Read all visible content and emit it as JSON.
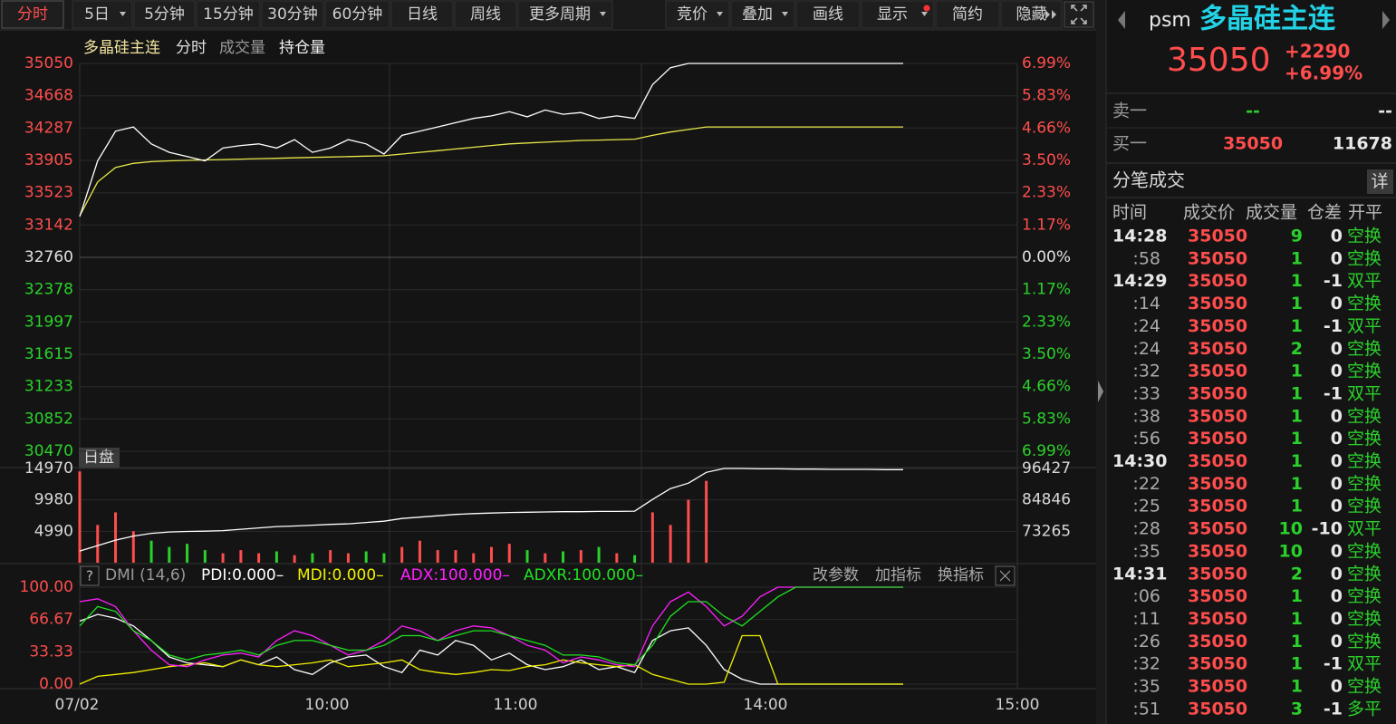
{
  "toolbar_left": [
    {
      "label": "分时",
      "active": true
    },
    {
      "label": "5日",
      "dropdown": true
    },
    {
      "label": "5分钟"
    },
    {
      "label": "15分钟"
    },
    {
      "label": "30分钟"
    },
    {
      "label": "60分钟"
    },
    {
      "label": "日线"
    },
    {
      "label": "周线"
    },
    {
      "label": "更多周期",
      "dropdown": true
    }
  ],
  "toolbar_right": [
    {
      "label": "竞价",
      "dropdown": true
    },
    {
      "label": "叠加",
      "dropdown": true
    },
    {
      "label": "画线"
    },
    {
      "label": "显示",
      "dropdown": true,
      "badge": true
    },
    {
      "label": "简约"
    },
    {
      "label": "隐藏"
    }
  ],
  "legend": [
    "多晶硅主连",
    "分时",
    "成交量",
    "持仓量"
  ],
  "price_chart": {
    "type": "line",
    "ylim": [
      30470,
      35050
    ],
    "yticks": [
      35050,
      34668,
      34287,
      33905,
      33523,
      33142,
      32760,
      32378,
      31997,
      31615,
      31233,
      30852,
      30470
    ],
    "pct_labels": [
      "6.99%",
      "5.83%",
      "4.66%",
      "3.50%",
      "2.33%",
      "1.17%",
      "0.00%",
      "1.17%",
      "2.33%",
      "3.50%",
      "4.66%",
      "5.83%",
      "6.99%"
    ],
    "up_color": "#ff4d4d",
    "down_color": "#2bd12b",
    "flat_color": "#e0e0e0",
    "session_label": "日盘",
    "price": {
      "color": "#ffffff",
      "values": [
        33240,
        33900,
        34250,
        34300,
        34100,
        34000,
        33950,
        33900,
        34050,
        34080,
        34100,
        34050,
        34150,
        34000,
        34050,
        34150,
        34100,
        33980,
        34200,
        34250,
        34300,
        34350,
        34400,
        34430,
        34480,
        34420,
        34500,
        34450,
        34470,
        34400,
        34430,
        34400,
        34800,
        35000,
        35050,
        35050,
        35050,
        35050,
        35050,
        35050,
        35050,
        35050,
        35050,
        35050,
        35050,
        35050,
        35050
      ]
    },
    "average": {
      "color": "#e8e84a",
      "values": [
        33250,
        33650,
        33820,
        33870,
        33890,
        33900,
        33905,
        33910,
        33915,
        33920,
        33925,
        33930,
        33935,
        33940,
        33945,
        33950,
        33955,
        33960,
        33980,
        34000,
        34020,
        34040,
        34060,
        34080,
        34100,
        34110,
        34120,
        34130,
        34140,
        34145,
        34150,
        34155,
        34200,
        34240,
        34270,
        34300,
        34300,
        34300,
        34300,
        34300,
        34300,
        34300,
        34300,
        34300,
        34300,
        34300,
        34300
      ]
    }
  },
  "volume_chart": {
    "type": "bar",
    "ylim": [
      0,
      14970
    ],
    "yticks": [
      4990,
      9980,
      14970
    ],
    "y2lim": [
      61684,
      96427
    ],
    "y2ticks": [
      73265,
      84846,
      96427
    ],
    "volume": {
      "values": [
        14500,
        6000,
        8000,
        5000,
        3500,
        2500,
        3000,
        2000,
        1500,
        2000,
        1500,
        1800,
        1200,
        1500,
        2000,
        1500,
        1800,
        1500,
        2500,
        3500,
        2000,
        2000,
        1500,
        2500,
        3000,
        2000,
        1500,
        1800,
        2000,
        2500,
        1500,
        1200,
        8000,
        6000,
        10000,
        13000,
        0,
        0,
        0,
        0,
        0,
        0,
        0,
        0,
        0,
        0,
        0
      ]
    },
    "open_interest": {
      "color": "#ffffff",
      "axis": "y2",
      "values": [
        66000,
        68000,
        70000,
        71500,
        72500,
        73000,
        73200,
        73300,
        73500,
        74000,
        74500,
        75000,
        75200,
        75500,
        75800,
        76000,
        76500,
        77000,
        78000,
        78500,
        79000,
        79500,
        79800,
        80000,
        80200,
        80300,
        80400,
        80500,
        80500,
        80600,
        80600,
        80700,
        85000,
        89000,
        91000,
        95000,
        96427,
        96427,
        96300,
        96300,
        96200,
        96200,
        96100,
        96100,
        96100,
        96000,
        96000
      ]
    }
  },
  "dmi": {
    "type": "line",
    "help": "?",
    "title": "DMI (14,6)",
    "ylim": [
      0,
      100
    ],
    "yticks": [
      {
        "value": 0,
        "label": "0.00"
      },
      {
        "value": 33.33,
        "label": "33.33"
      },
      {
        "value": 66.67,
        "label": "66.67"
      },
      {
        "value": 100,
        "label": "100.00"
      }
    ],
    "series": [
      {
        "name": "PDI:0.000–",
        "color": "#ffffff",
        "values": [
          65,
          72,
          68,
          60,
          45,
          28,
          22,
          20,
          18,
          25,
          20,
          28,
          15,
          10,
          22,
          28,
          30,
          18,
          12,
          35,
          30,
          45,
          40,
          25,
          32,
          20,
          15,
          18,
          25,
          15,
          18,
          12,
          45,
          55,
          58,
          40,
          15,
          5,
          0,
          0,
          0,
          0,
          0,
          0,
          0,
          0,
          0
        ]
      },
      {
        "name": "MDI:0.000–",
        "color": "#f0f000",
        "values": [
          0,
          8,
          10,
          12,
          15,
          18,
          20,
          22,
          18,
          25,
          20,
          18,
          20,
          22,
          25,
          18,
          20,
          22,
          25,
          15,
          12,
          10,
          12,
          15,
          14,
          18,
          20,
          25,
          22,
          20,
          18,
          20,
          10,
          5,
          0,
          0,
          2,
          50,
          50,
          0,
          0,
          0,
          0,
          0,
          0,
          0,
          0
        ]
      },
      {
        "name": "ADX:100.000–",
        "color": "#ff20ff",
        "values": [
          85,
          88,
          80,
          55,
          35,
          20,
          18,
          25,
          30,
          32,
          28,
          45,
          55,
          50,
          40,
          30,
          35,
          45,
          60,
          55,
          45,
          55,
          60,
          58,
          50,
          40,
          35,
          22,
          28,
          25,
          20,
          18,
          60,
          85,
          95,
          80,
          60,
          70,
          90,
          100,
          100,
          100,
          100,
          100,
          100,
          100,
          100
        ]
      },
      {
        "name": "ADXR:100.000–",
        "color": "#20e020",
        "values": [
          60,
          80,
          75,
          55,
          45,
          30,
          25,
          30,
          32,
          35,
          30,
          40,
          45,
          45,
          40,
          35,
          35,
          40,
          50,
          50,
          45,
          50,
          55,
          55,
          50,
          45,
          40,
          30,
          30,
          28,
          22,
          20,
          40,
          70,
          85,
          85,
          70,
          60,
          75,
          90,
          100,
          100,
          100,
          100,
          100,
          100,
          100
        ]
      }
    ],
    "actions": [
      "改参数",
      "加指标",
      "换指标"
    ]
  },
  "time_axis": [
    "07/02",
    "10:00",
    "11:00",
    "14:00",
    "15:00"
  ],
  "quote": {
    "code": "psm",
    "name": "多晶硅主连",
    "price": 35050,
    "change": "+2290",
    "change_pct": "+6.99%"
  },
  "order_book": [
    {
      "label": "卖一",
      "price": "--",
      "volume": "--"
    },
    {
      "label": "买一",
      "price": 35050,
      "volume": 11678
    }
  ],
  "ticks_panel": {
    "title": "分笔成交",
    "detail": "详",
    "columns": [
      "时间",
      "成交价",
      "成交量",
      "仓差",
      "开平"
    ],
    "rows": [
      [
        "14:28",
        35050,
        9,
        0,
        "空换"
      ],
      [
        ":58",
        35050,
        1,
        0,
        "空换"
      ],
      [
        "14:29",
        35050,
        1,
        -1,
        "双平"
      ],
      [
        ":14",
        35050,
        1,
        0,
        "空换"
      ],
      [
        ":24",
        35050,
        1,
        -1,
        "双平"
      ],
      [
        ":24",
        35050,
        2,
        0,
        "空换"
      ],
      [
        ":32",
        35050,
        1,
        0,
        "空换"
      ],
      [
        ":33",
        35050,
        1,
        -1,
        "双平"
      ],
      [
        ":38",
        35050,
        1,
        0,
        "空换"
      ],
      [
        ":56",
        35050,
        1,
        0,
        "空换"
      ],
      [
        "14:30",
        35050,
        1,
        0,
        "空换"
      ],
      [
        ":22",
        35050,
        1,
        0,
        "空换"
      ],
      [
        ":25",
        35050,
        1,
        0,
        "空换"
      ],
      [
        ":28",
        35050,
        10,
        -10,
        "双平"
      ],
      [
        ":35",
        35050,
        10,
        0,
        "空换"
      ],
      [
        "14:31",
        35050,
        2,
        0,
        "空换"
      ],
      [
        ":06",
        35050,
        1,
        0,
        "空换"
      ],
      [
        ":11",
        35050,
        1,
        0,
        "空换"
      ],
      [
        ":26",
        35050,
        1,
        0,
        "空换"
      ],
      [
        ":32",
        35050,
        1,
        -1,
        "双平"
      ],
      [
        ":35",
        35050,
        1,
        0,
        "空换"
      ],
      [
        ":51",
        35050,
        3,
        -1,
        "多平"
      ]
    ]
  }
}
